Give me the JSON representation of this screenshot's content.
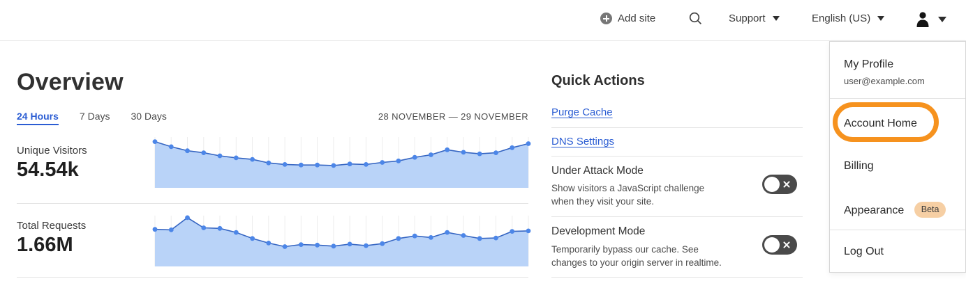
{
  "header": {
    "add_site_label": "Add site",
    "support_label": "Support",
    "language_label": "English (US)"
  },
  "overview": {
    "title": "Overview",
    "tabs": [
      {
        "label": "24 Hours",
        "active": true
      },
      {
        "label": "7 Days",
        "active": false
      },
      {
        "label": "30 Days",
        "active": false
      }
    ],
    "date_range": "28 NOVEMBER — 29 NOVEMBER",
    "metrics": [
      {
        "label": "Unique Visitors",
        "value": "54.54k"
      },
      {
        "label": "Total Requests",
        "value": "1.66M"
      }
    ]
  },
  "quick_actions": {
    "title": "Quick Actions",
    "links": [
      {
        "label": "Purge Cache"
      },
      {
        "label": "DNS Settings"
      }
    ],
    "toggles": [
      {
        "label": "Under Attack Mode",
        "description_line1": "Show visitors a JavaScript challenge",
        "description_line2": "when they visit your site.",
        "state": "off"
      },
      {
        "label": "Development Mode",
        "description_line1": "Temporarily bypass our cache. See",
        "description_line2": "changes to your origin server in realtime.",
        "state": "off"
      }
    ]
  },
  "account_menu": {
    "profile_label": "My Profile",
    "profile_email": "user@example.com",
    "items": [
      {
        "label": "Account Home",
        "highlighted": true
      },
      {
        "label": "Billing"
      },
      {
        "label": "Appearance",
        "badge": "Beta"
      },
      {
        "label": "Log Out"
      }
    ]
  },
  "chart_data": [
    {
      "type": "area",
      "title": "Unique Visitors",
      "metric_total": "54.54k",
      "x": [
        0,
        1,
        2,
        3,
        4,
        5,
        6,
        7,
        8,
        9,
        10,
        11,
        12,
        13,
        14,
        15,
        16,
        17,
        18,
        19,
        20,
        21,
        22,
        23
      ],
      "x_meaning": "hourly samples across 28–29 November (24 Hours view), no tick labels shown",
      "values": [
        91,
        81,
        73,
        69,
        63,
        59,
        56,
        49,
        46,
        45,
        45,
        44,
        47,
        46,
        50,
        53,
        60,
        65,
        75,
        70,
        67,
        69,
        79,
        87
      ],
      "y_unit": "percent of plot height (chart has no visible y-axis labels)",
      "grid": "vertical gridlines at each point",
      "legend": "none",
      "colors": {
        "line": "#3565c2",
        "dot": "#4c86e8",
        "fill": "#b9d3f8",
        "grid": "#ededed"
      }
    },
    {
      "type": "area",
      "title": "Total Requests",
      "metric_total": "1.66M",
      "x": [
        0,
        1,
        2,
        3,
        4,
        5,
        6,
        7,
        8,
        9,
        10,
        11,
        12,
        13,
        14,
        15,
        16,
        17,
        18,
        19,
        20,
        21,
        22,
        23
      ],
      "x_meaning": "hourly samples across 28–29 November (24 Hours view), no tick labels shown",
      "values": [
        73,
        72,
        96,
        76,
        75,
        67,
        55,
        46,
        39,
        43,
        42,
        40,
        44,
        41,
        45,
        55,
        60,
        57,
        67,
        61,
        55,
        56,
        69,
        70
      ],
      "y_unit": "percent of plot height (chart has no visible y-axis labels)",
      "grid": "vertical gridlines at each point",
      "legend": "none",
      "colors": {
        "line": "#3565c2",
        "dot": "#4c86e8",
        "fill": "#b9d3f8",
        "grid": "#ededed"
      }
    }
  ],
  "colors": {
    "link_blue": "#2b5dd3",
    "highlight_orange": "#f6921e",
    "beta_badge_bg": "#f6cfa4",
    "toggle_off_bg": "#4a4a4a",
    "divider": "#e4e4e4"
  },
  "icons": {
    "add_site": "plus-circle-icon",
    "search": "search-icon",
    "support": "chevron-down-icon",
    "language": "chevron-down-icon",
    "account": "user-icon",
    "account_caret": "chevron-down-icon",
    "toggle_state": "x-icon"
  }
}
